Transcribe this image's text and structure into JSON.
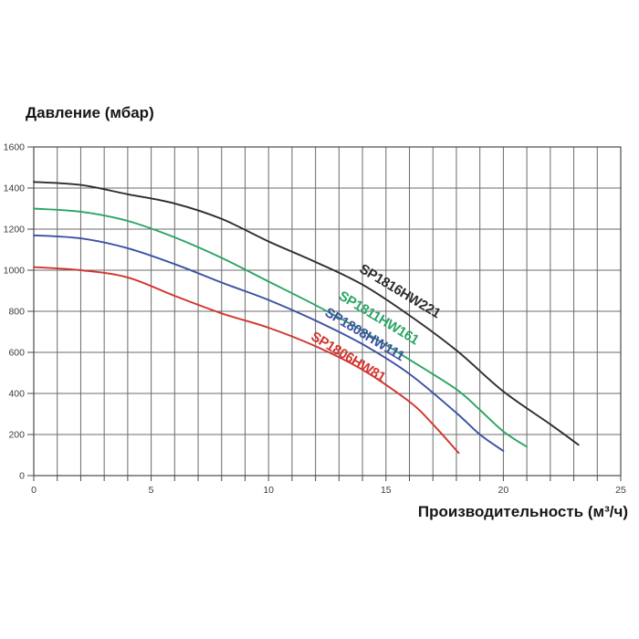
{
  "chart_data": {
    "type": "line",
    "title": "",
    "ylabel": "Давление (мбар)",
    "xlabel": "Производительность (м³/ч)",
    "xlim": [
      0,
      25
    ],
    "ylim": [
      0,
      1600
    ],
    "x_minor_step": 1,
    "y_tick_step": 200,
    "x_tick_labels": [
      0,
      5,
      10,
      15,
      20,
      25
    ],
    "y_tick_labels": [
      0,
      200,
      400,
      600,
      800,
      1000,
      1200,
      1400,
      1600
    ],
    "grid": true,
    "legend_position": "inline-curve-labels",
    "grid_color": "#6b6b6b",
    "border_color": "#4a4a4a",
    "tick_label_color": "#3c3c3c",
    "background_color": "#ffffff",
    "series": [
      {
        "name": "SP1816HW221",
        "color": "#2d2d2d",
        "label_anchor": {
          "x": 15.5,
          "y": 880,
          "angle": 31
        },
        "points": [
          [
            0,
            1430
          ],
          [
            2,
            1415
          ],
          [
            4,
            1370
          ],
          [
            6,
            1325
          ],
          [
            8,
            1250
          ],
          [
            10,
            1140
          ],
          [
            12,
            1040
          ],
          [
            14,
            930
          ],
          [
            16,
            780
          ],
          [
            18,
            610
          ],
          [
            20,
            410
          ],
          [
            22,
            250
          ],
          [
            23.2,
            150
          ]
        ]
      },
      {
        "name": "SP1811HW161",
        "color": "#2aa564",
        "label_anchor": {
          "x": 14.6,
          "y": 750,
          "angle": 31
        },
        "points": [
          [
            0,
            1300
          ],
          [
            2,
            1285
          ],
          [
            4,
            1240
          ],
          [
            6,
            1160
          ],
          [
            8,
            1060
          ],
          [
            10,
            945
          ],
          [
            12,
            830
          ],
          [
            14,
            705
          ],
          [
            16,
            565
          ],
          [
            18,
            420
          ],
          [
            19,
            320
          ],
          [
            20,
            215
          ],
          [
            21,
            140
          ]
        ]
      },
      {
        "name": "SP1808HW111",
        "color": "#3b51a3",
        "label_anchor": {
          "x": 14.0,
          "y": 670,
          "angle": 31
        },
        "points": [
          [
            0,
            1170
          ],
          [
            2,
            1155
          ],
          [
            4,
            1107
          ],
          [
            6,
            1030
          ],
          [
            8,
            940
          ],
          [
            10,
            855
          ],
          [
            12,
            755
          ],
          [
            14,
            640
          ],
          [
            16,
            495
          ],
          [
            18,
            305
          ],
          [
            19,
            200
          ],
          [
            20,
            120
          ]
        ]
      },
      {
        "name": "SP1806HW81",
        "color": "#d2342f",
        "label_anchor": {
          "x": 13.3,
          "y": 560,
          "angle": 31
        },
        "points": [
          [
            0,
            1015
          ],
          [
            2,
            1000
          ],
          [
            4,
            965
          ],
          [
            6,
            875
          ],
          [
            8,
            790
          ],
          [
            10,
            720
          ],
          [
            12,
            630
          ],
          [
            14,
            515
          ],
          [
            16,
            360
          ],
          [
            17,
            250
          ],
          [
            18.1,
            110
          ]
        ]
      }
    ]
  }
}
